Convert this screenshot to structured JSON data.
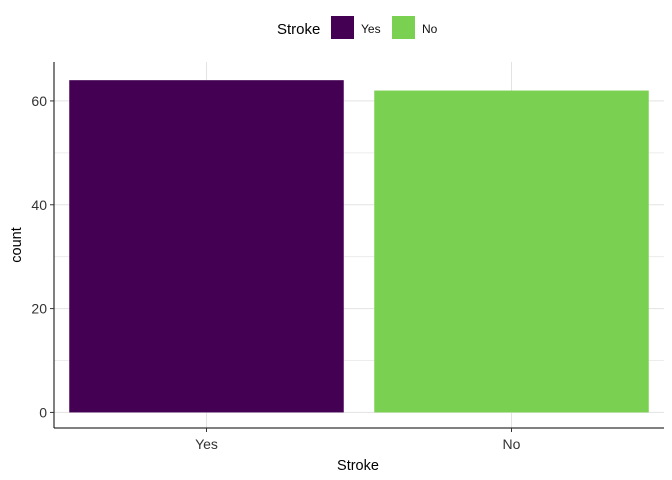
{
  "chart_data": {
    "type": "bar",
    "categories": [
      "Yes",
      "No"
    ],
    "values": [
      64,
      62
    ],
    "colors": [
      "#440154",
      "#7AD151"
    ],
    "xlabel": "Stroke",
    "ylabel": "count",
    "ylim": [
      -3,
      67.5
    ],
    "yticks": [
      0,
      20,
      40,
      60
    ],
    "grid": true,
    "legend": {
      "title": "Stroke",
      "position": "top",
      "entries": [
        {
          "label": "Yes",
          "color": "#440154"
        },
        {
          "label": "No",
          "color": "#7AD151"
        }
      ]
    }
  }
}
